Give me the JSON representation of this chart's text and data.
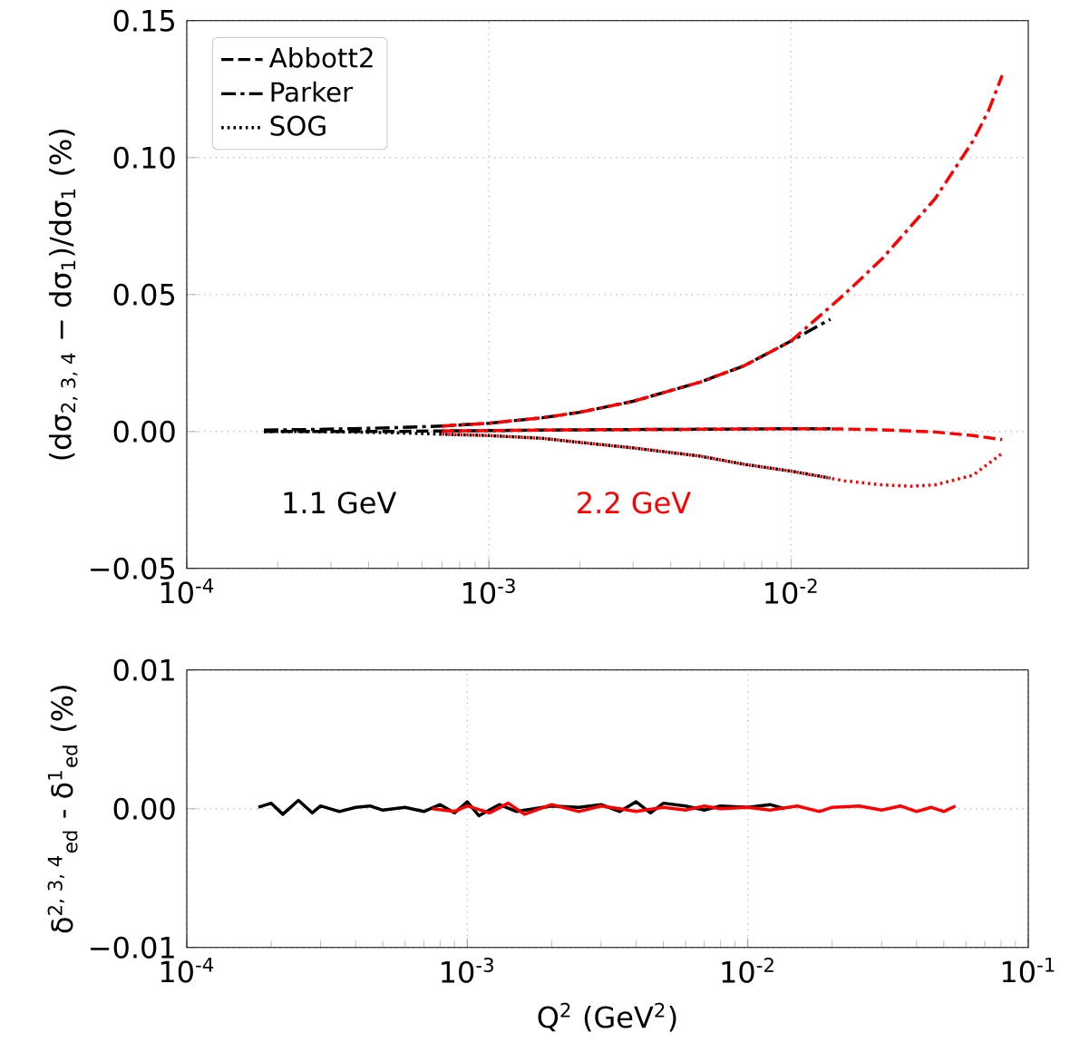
{
  "chart_data": [
    {
      "type": "line",
      "ylabel": "(dσ$_{2, 3, 4}$ − dσ$_{1}$)/dσ$_{1}$ (%)",
      "log": "x",
      "grid": true,
      "legend": "top left",
      "tick_labels": "xy",
      "xlim": [
        0.0001,
        0.061
      ],
      "xticks": [
        {
          "value": 0.0001,
          "label": "10$^{-4}$"
        },
        {
          "value": 0.001,
          "label": "10$^{-3}$"
        },
        {
          "value": 0.01,
          "label": "10$^{-2}$"
        }
      ],
      "ylim": [
        -0.05,
        0.15
      ],
      "yticks": [
        {
          "value": -0.05,
          "label": "−0.05"
        },
        {
          "value": 0,
          "label": "0.00"
        },
        {
          "value": 0.05,
          "label": "0.05"
        },
        {
          "value": 0.1,
          "label": "0.10"
        },
        {
          "value": 0.15,
          "label": "0.15"
        }
      ],
      "annotations": [
        "1.1 GeV",
        "2.2 GeV"
      ],
      "series": [
        {
          "name": "Abbott2",
          "color": "#000000",
          "line_style": "dashed",
          "x": [
            0.00018,
            0.00025,
            0.00035,
            0.0005,
            0.0007,
            0.001,
            0.0015,
            0.002,
            0.003,
            0.005,
            0.007,
            0.01,
            0.0135
          ],
          "values": [
            0,
            0,
            0,
            0,
            0.0002,
            0.0003,
            0.0005,
            0.0006,
            0.0007,
            0.0008,
            0.0009,
            0.001,
            0.001
          ]
        },
        {
          "name": "Parker",
          "color": "#000000",
          "line_style": "dashdot",
          "x": [
            0.00018,
            0.00025,
            0.00035,
            0.0005,
            0.0007,
            0.001,
            0.0015,
            0.002,
            0.003,
            0.005,
            0.007,
            0.01,
            0.0135
          ],
          "values": [
            0.0005,
            0.0007,
            0.001,
            0.0014,
            0.002,
            0.003,
            0.005,
            0.007,
            0.011,
            0.018,
            0.024,
            0.033,
            0.041
          ]
        },
        {
          "name": "SOG",
          "color": "#000000",
          "line_style": "dotted",
          "x": [
            0.00018,
            0.00025,
            0.00035,
            0.0005,
            0.0007,
            0.001,
            0.0015,
            0.002,
            0.003,
            0.005,
            0.007,
            0.01,
            0.0135
          ],
          "values": [
            0,
            0,
            -0.0002,
            -0.0005,
            -0.001,
            -0.0015,
            -0.0025,
            -0.004,
            -0.006,
            -0.009,
            -0.012,
            -0.0145,
            -0.017
          ]
        },
        {
          "color": "#ff0000",
          "line_style": "dashed",
          "x": [
            0.0007,
            0.001,
            0.0015,
            0.002,
            0.003,
            0.005,
            0.007,
            0.01,
            0.015,
            0.02,
            0.03,
            0.04,
            0.05
          ],
          "values": [
            0.0002,
            0.0003,
            0.0005,
            0.0006,
            0.0007,
            0.0008,
            0.0009,
            0.001,
            0.0009,
            0.0006,
            -0.0002,
            -0.0015,
            -0.003
          ]
        },
        {
          "color": "#ff0000",
          "line_style": "dashdot",
          "x": [
            0.0007,
            0.001,
            0.0015,
            0.002,
            0.003,
            0.005,
            0.007,
            0.01,
            0.015,
            0.02,
            0.03,
            0.04,
            0.045,
            0.05
          ],
          "values": [
            0.002,
            0.003,
            0.005,
            0.007,
            0.011,
            0.018,
            0.024,
            0.033,
            0.05,
            0.063,
            0.085,
            0.106,
            0.117,
            0.13
          ]
        },
        {
          "color": "#ff0000",
          "line_style": "dotted",
          "x": [
            0.0007,
            0.001,
            0.0015,
            0.002,
            0.003,
            0.005,
            0.007,
            0.01,
            0.015,
            0.02,
            0.025,
            0.03,
            0.04,
            0.05
          ],
          "values": [
            -0.001,
            -0.0015,
            -0.0025,
            -0.004,
            -0.006,
            -0.009,
            -0.012,
            -0.0145,
            -0.018,
            -0.0195,
            -0.02,
            -0.0195,
            -0.016,
            -0.008
          ]
        }
      ]
    },
    {
      "type": "line",
      "xlabel": "Q$^{2}$ (GeV$^{2}$)",
      "ylabel": "δ$^{2, 3, 4}$$_{ed}$ - δ$^{1}$$_{ed}$ (%)",
      "log": "x",
      "grid": true,
      "xlim": [
        0.0001,
        0.1
      ],
      "xticks": [
        {
          "value": 0.0001,
          "label": "10$^{-4}$"
        },
        {
          "value": 0.001,
          "label": "10$^{-3}$"
        },
        {
          "value": 0.01,
          "label": "10$^{-2}$"
        },
        {
          "value": 0.1,
          "label": "10$^{-1}$"
        }
      ],
      "ylim": [
        -0.01,
        0.01
      ],
      "yticks": [
        {
          "value": -0.01,
          "label": "−0.01"
        },
        {
          "value": 0,
          "label": "0.00"
        },
        {
          "value": 0.01,
          "label": "0.01"
        }
      ],
      "series": [
        {
          "color": "#000000",
          "line_style": "solid",
          "x": [
            0.00018,
            0.0002,
            0.00022,
            0.00025,
            0.00028,
            0.0003,
            0.00035,
            0.0004,
            0.00045,
            0.0005,
            0.0006,
            0.0007,
            0.0008,
            0.0009,
            0.001,
            0.0011,
            0.0013,
            0.0015,
            0.002,
            0.0025,
            0.003,
            0.0035,
            0.004,
            0.0045,
            0.005,
            0.006,
            0.007,
            0.008,
            0.01,
            0.012,
            0.0135
          ],
          "values": [
            0.0001,
            0.0004,
            -0.0004,
            0.0006,
            -0.0003,
            0.0002,
            -0.0002,
            0.0001,
            0.0002,
            -0.0001,
            0.0001,
            -0.0002,
            0.0003,
            -0.0003,
            0.0005,
            -0.0005,
            0.0003,
            -0.0002,
            0.0002,
            0.0001,
            0.0003,
            -0.0002,
            0.0005,
            -0.0003,
            0.0004,
            0.0002,
            -0.0001,
            0.0002,
            0.0001,
            0.0003,
            0
          ]
        },
        {
          "color": "#ff0000",
          "line_style": "solid",
          "x": [
            0.00075,
            0.0009,
            0.001,
            0.0012,
            0.0014,
            0.0016,
            0.002,
            0.0025,
            0.003,
            0.0035,
            0.004,
            0.005,
            0.006,
            0.007,
            0.008,
            0.01,
            0.012,
            0.015,
            0.018,
            0.02,
            0.025,
            0.03,
            0.035,
            0.04,
            0.045,
            0.05,
            0.055
          ],
          "values": [
            0,
            -0.0002,
            0.0002,
            -0.0003,
            0.0004,
            -0.0004,
            0.0003,
            -0.0002,
            0.0002,
            0,
            -0.0002,
            0.0001,
            -0.0001,
            0.0002,
            0,
            0.0001,
            -0.0001,
            0.0002,
            -0.0002,
            0.0001,
            0.0002,
            -0.0001,
            0.0002,
            -0.0002,
            0.0001,
            -0.0002,
            0.0002
          ]
        }
      ]
    }
  ]
}
